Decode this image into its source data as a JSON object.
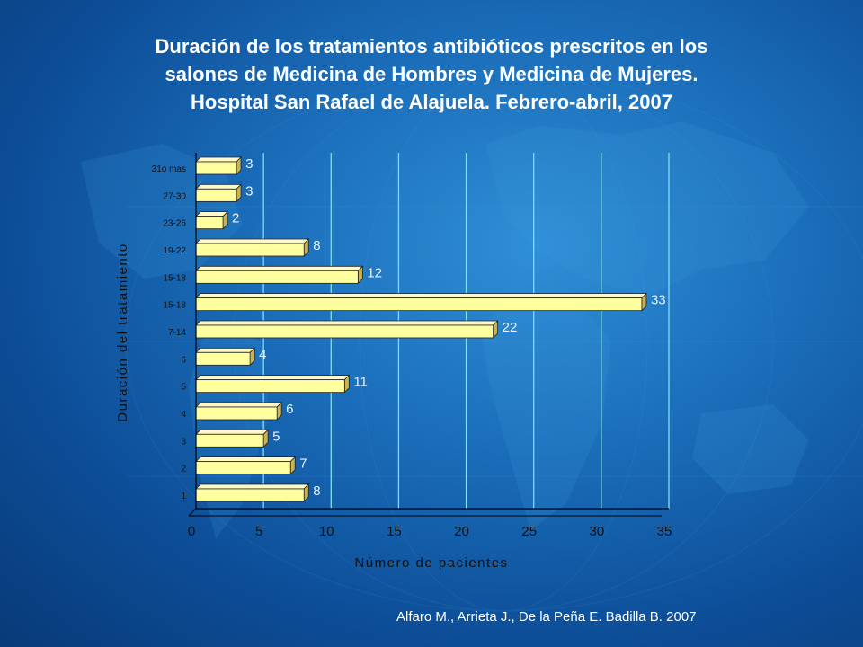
{
  "title_lines": [
    "Duración de los tratamientos antibióticos prescritos en los",
    "salones de Medicina de Hombres y Medicina de Mujeres.",
    "Hospital San Rafael de Alajuela. Febrero-abril, 2007"
  ],
  "credit": "Alfaro M., Arrieta J., De la Peña E. Badilla B.  2007",
  "colors": {
    "bar_face": "#ffffa0",
    "bar_top": "#fff8c8",
    "bar_side": "#c8b458",
    "bar_outline": "#222222",
    "gridline": "#7fe0f0",
    "axis_text": "#111111",
    "label_text": "#e8f2ff"
  },
  "chart_data": {
    "type": "bar",
    "orientation": "horizontal",
    "categories": [
      "31o mas",
      "27-30",
      "23-26",
      "19-22",
      "15-18",
      "15-18",
      "7-14",
      "6",
      "5",
      "4",
      "3",
      "2",
      "1"
    ],
    "values": [
      3,
      3,
      2,
      8,
      12,
      33,
      22,
      4,
      11,
      6,
      5,
      7,
      8
    ],
    "xlabel": "Número de pacientes",
    "ylabel": "Duración del tratamiento",
    "xlim": [
      0,
      35
    ],
    "xticks": [
      0,
      5,
      10,
      15,
      20,
      25,
      30,
      35
    ],
    "grid": true
  }
}
